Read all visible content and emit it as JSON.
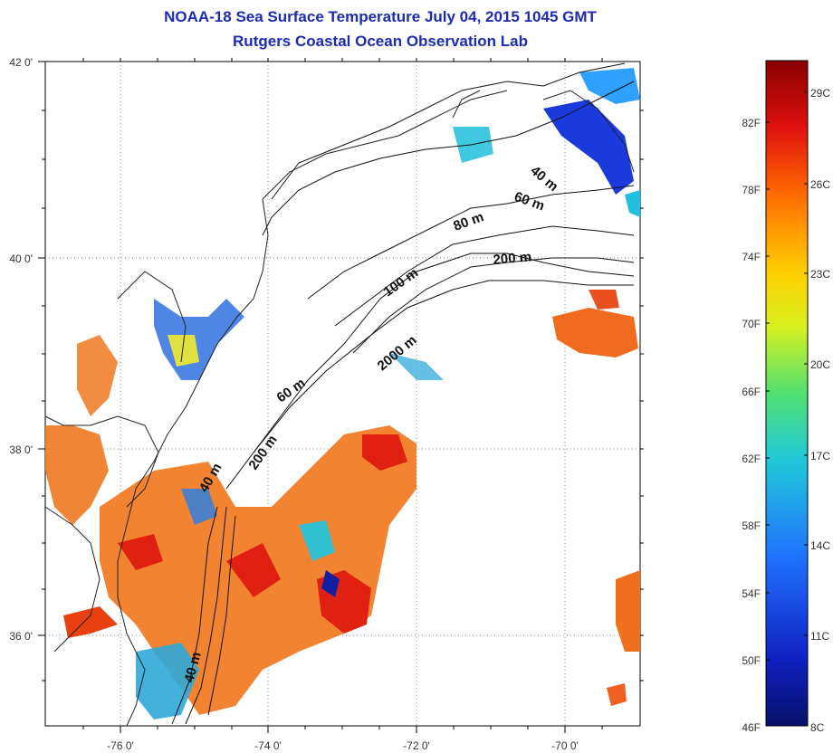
{
  "title": {
    "line1": "NOAA-18 Sea Surface Temperature July 04, 2015 1045 GMT",
    "line2": "Rutgers Coastal Ocean Observation Lab"
  },
  "axes": {
    "lat_labels": [
      "42 0'",
      "40 0'",
      "38 0'",
      "36 0'"
    ],
    "lon_labels": [
      "-76 0'",
      "-74 0'",
      "-72 0'",
      "-70 0'"
    ]
  },
  "contours": [
    "40 m",
    "60 m",
    "80 m",
    "200 m",
    "100 m",
    "2000 m",
    "60 m",
    "200 m",
    "40 m",
    "40 m"
  ],
  "colorbar": {
    "fahrenheit": [
      "82F",
      "78F",
      "74F",
      "70F",
      "66F",
      "62F",
      "58F",
      "54F",
      "50F",
      "46F"
    ],
    "celsius": [
      "29C",
      "26C",
      "23C",
      "20C",
      "17C",
      "14C",
      "11C",
      "8C"
    ],
    "colors": [
      "#8b0000",
      "#e01010",
      "#ff6a00",
      "#ffd000",
      "#d8f020",
      "#50e070",
      "#20c8d8",
      "#2070ff",
      "#1020c0",
      "#08106a"
    ]
  }
}
